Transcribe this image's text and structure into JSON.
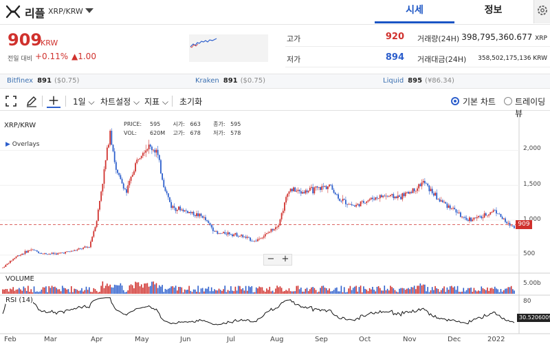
{
  "header": {
    "coin_name": "리플",
    "pair": "XRP/KRW",
    "tabs": [
      "시세",
      "정보"
    ]
  },
  "price": {
    "current": "909",
    "unit": "KRW",
    "change_label": "전일 대비",
    "change_pct": "+0.11%",
    "change_abs": "▲1.00"
  },
  "stats": {
    "high_label": "고가",
    "high": "920",
    "low_label": "저가",
    "low": "894",
    "volume_label": "거래량(24H)",
    "volume": "398,795,360.677",
    "volume_unit": "XRP",
    "amount_label": "거래대금(24H)",
    "amount": "358,502,175,136",
    "amount_unit": "KRW"
  },
  "exchanges": [
    {
      "name": "Bitfinex",
      "price": "891",
      "diff": "($0.75)"
    },
    {
      "name": "Kraken",
      "price": "891",
      "diff": "($0.75)"
    },
    {
      "name": "Liquid",
      "price": "895",
      "diff": "(¥86.34)"
    }
  ],
  "toolbar": {
    "interval": "1일",
    "chart_settings": "차트설정",
    "indicators": "지표",
    "reset": "초기화",
    "basic_chart": "기본 차트",
    "trading_view": "트레이딩뷰"
  },
  "chart": {
    "title": "XRP/KRW",
    "overlays": "Overlays",
    "ohlc": {
      "price_label": "PRICE:",
      "price": "595",
      "open_label": "시가:",
      "open": "663",
      "close_label": "종가:",
      "close": "595",
      "vol_label": "VOL:",
      "vol": "620M",
      "high_label": "고가:",
      "high": "678",
      "low_label": "저가:",
      "low": "578"
    },
    "volume_label": "VOLUME",
    "rsi_label": "RSI (14)",
    "volume_axis": "5.00b",
    "rsi_axis": "80",
    "rsi_value": "30.52060095",
    "price_tag": "909",
    "zoom_minus": "−",
    "zoom_plus": "+",
    "colors": {
      "up": "#d0312d",
      "down": "#2c5ecc"
    }
  },
  "chart_data": {
    "type": "candlestick",
    "y_ticks": [
      "2,000",
      "1,500",
      "1,000",
      "500"
    ],
    "x_ticks": [
      "Feb",
      "Mar",
      "Apr",
      "May",
      "Jun",
      "Jul",
      "Aug",
      "Sep",
      "Oct",
      "Nov",
      "Dec",
      "2022"
    ],
    "ylim": [
      300,
      2450
    ],
    "current_price": 909,
    "price_path": [
      [
        "2021-02-01",
        320
      ],
      [
        "2021-02-10",
        480
      ],
      [
        "2021-02-20",
        580
      ],
      [
        "2021-02-28",
        520
      ],
      [
        "2021-03-10",
        520
      ],
      [
        "2021-03-20",
        560
      ],
      [
        "2021-03-31",
        620
      ],
      [
        "2021-04-05",
        1000
      ],
      [
        "2021-04-10",
        1700
      ],
      [
        "2021-04-14",
        2300
      ],
      [
        "2021-04-18",
        1700
      ],
      [
        "2021-04-25",
        1400
      ],
      [
        "2021-05-01",
        1800
      ],
      [
        "2021-05-05",
        2000
      ],
      [
        "2021-05-10",
        2050
      ],
      [
        "2021-05-15",
        2000
      ],
      [
        "2021-05-20",
        1500
      ],
      [
        "2021-05-25",
        1200
      ],
      [
        "2021-06-01",
        1150
      ],
      [
        "2021-06-15",
        1050
      ],
      [
        "2021-06-25",
        800
      ],
      [
        "2021-07-01",
        820
      ],
      [
        "2021-07-10",
        780
      ],
      [
        "2021-07-20",
        700
      ],
      [
        "2021-07-28",
        800
      ],
      [
        "2021-08-05",
        950
      ],
      [
        "2021-08-12",
        1450
      ],
      [
        "2021-08-20",
        1400
      ],
      [
        "2021-09-01",
        1450
      ],
      [
        "2021-09-08",
        1500
      ],
      [
        "2021-09-15",
        1300
      ],
      [
        "2021-09-25",
        1200
      ],
      [
        "2021-10-05",
        1300
      ],
      [
        "2021-10-15",
        1350
      ],
      [
        "2021-10-25",
        1330
      ],
      [
        "2021-11-05",
        1450
      ],
      [
        "2021-11-10",
        1550
      ],
      [
        "2021-11-20",
        1300
      ],
      [
        "2021-12-01",
        1150
      ],
      [
        "2021-12-08",
        1000
      ],
      [
        "2021-12-20",
        1050
      ],
      [
        "2021-12-28",
        1150
      ],
      [
        "2022-01-05",
        950
      ],
      [
        "2022-01-10",
        909
      ]
    ]
  }
}
